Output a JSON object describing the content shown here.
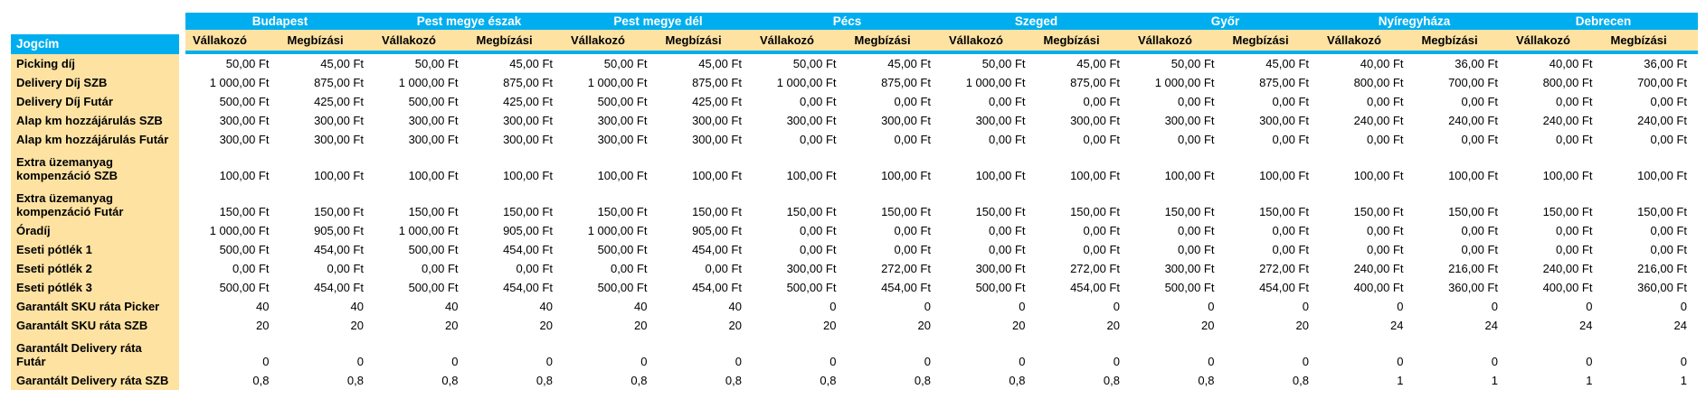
{
  "colors": {
    "header_cyan": "#00AEEF",
    "cell_tan": "#FDE2A2",
    "header_text": "#FFFFFF",
    "body_text": "#000000",
    "data_background": "#FFFFFF"
  },
  "table": {
    "corner_label": "Jogcím",
    "regions": [
      "Budapest",
      "Pest megye észak",
      "Pest megye dél",
      "Pécs",
      "Szeged",
      "Győr",
      "Nyíregyháza",
      "Debrecen"
    ],
    "sub_headers": [
      "Vállakozó",
      "Megbízási"
    ],
    "rows": [
      {
        "label": "Picking díj",
        "two_line": false,
        "values": [
          "50,00 Ft",
          "45,00 Ft",
          "50,00 Ft",
          "45,00 Ft",
          "50,00 Ft",
          "45,00 Ft",
          "50,00 Ft",
          "45,00 Ft",
          "50,00 Ft",
          "45,00 Ft",
          "50,00 Ft",
          "45,00 Ft",
          "40,00 Ft",
          "36,00 Ft",
          "40,00 Ft",
          "36,00 Ft"
        ]
      },
      {
        "label": "Delivery Díj SZB",
        "two_line": false,
        "values": [
          "1 000,00 Ft",
          "875,00 Ft",
          "1 000,00 Ft",
          "875,00 Ft",
          "1 000,00 Ft",
          "875,00 Ft",
          "1 000,00 Ft",
          "875,00 Ft",
          "1 000,00 Ft",
          "875,00 Ft",
          "1 000,00 Ft",
          "875,00 Ft",
          "800,00 Ft",
          "700,00 Ft",
          "800,00 Ft",
          "700,00 Ft"
        ]
      },
      {
        "label": "Delivery Díj Futár",
        "two_line": false,
        "values": [
          "500,00 Ft",
          "425,00 Ft",
          "500,00 Ft",
          "425,00 Ft",
          "500,00 Ft",
          "425,00 Ft",
          "0,00 Ft",
          "0,00 Ft",
          "0,00 Ft",
          "0,00 Ft",
          "0,00 Ft",
          "0,00 Ft",
          "0,00 Ft",
          "0,00 Ft",
          "0,00 Ft",
          "0,00 Ft"
        ]
      },
      {
        "label": "Alap km hozzájárulás SZB",
        "two_line": false,
        "values": [
          "300,00 Ft",
          "300,00 Ft",
          "300,00 Ft",
          "300,00 Ft",
          "300,00 Ft",
          "300,00 Ft",
          "300,00 Ft",
          "300,00 Ft",
          "300,00 Ft",
          "300,00 Ft",
          "300,00 Ft",
          "300,00 Ft",
          "240,00 Ft",
          "240,00 Ft",
          "240,00 Ft",
          "240,00 Ft"
        ]
      },
      {
        "label": "Alap km hozzájárulás Futár",
        "two_line": false,
        "values": [
          "300,00 Ft",
          "300,00 Ft",
          "300,00 Ft",
          "300,00 Ft",
          "300,00 Ft",
          "300,00 Ft",
          "0,00 Ft",
          "0,00 Ft",
          "0,00 Ft",
          "0,00 Ft",
          "0,00 Ft",
          "0,00 Ft",
          "0,00 Ft",
          "0,00 Ft",
          "0,00 Ft",
          "0,00 Ft"
        ]
      },
      {
        "label": "Extra üzemanyag\nkompenzáció SZB",
        "two_line": true,
        "values": [
          "100,00 Ft",
          "100,00 Ft",
          "100,00 Ft",
          "100,00 Ft",
          "100,00 Ft",
          "100,00 Ft",
          "100,00 Ft",
          "100,00 Ft",
          "100,00 Ft",
          "100,00 Ft",
          "100,00 Ft",
          "100,00 Ft",
          "100,00 Ft",
          "100,00 Ft",
          "100,00 Ft",
          "100,00 Ft"
        ]
      },
      {
        "label": "Extra üzemanyag\nkompenzáció Futár",
        "two_line": true,
        "values": [
          "150,00 Ft",
          "150,00 Ft",
          "150,00 Ft",
          "150,00 Ft",
          "150,00 Ft",
          "150,00 Ft",
          "150,00 Ft",
          "150,00 Ft",
          "150,00 Ft",
          "150,00 Ft",
          "150,00 Ft",
          "150,00 Ft",
          "150,00 Ft",
          "150,00 Ft",
          "150,00 Ft",
          "150,00 Ft"
        ]
      },
      {
        "label": "Óradíj",
        "two_line": false,
        "values": [
          "1 000,00 Ft",
          "905,00 Ft",
          "1 000,00 Ft",
          "905,00 Ft",
          "1 000,00 Ft",
          "905,00 Ft",
          "0,00 Ft",
          "0,00 Ft",
          "0,00 Ft",
          "0,00 Ft",
          "0,00 Ft",
          "0,00 Ft",
          "0,00 Ft",
          "0,00 Ft",
          "0,00 Ft",
          "0,00 Ft"
        ]
      },
      {
        "label": "Eseti pótlék 1",
        "two_line": false,
        "values": [
          "500,00 Ft",
          "454,00 Ft",
          "500,00 Ft",
          "454,00 Ft",
          "500,00 Ft",
          "454,00 Ft",
          "0,00 Ft",
          "0,00 Ft",
          "0,00 Ft",
          "0,00 Ft",
          "0,00 Ft",
          "0,00 Ft",
          "0,00 Ft",
          "0,00 Ft",
          "0,00 Ft",
          "0,00 Ft"
        ]
      },
      {
        "label": "Eseti pótlék 2",
        "two_line": false,
        "values": [
          "0,00 Ft",
          "0,00 Ft",
          "0,00 Ft",
          "0,00 Ft",
          "0,00 Ft",
          "0,00 Ft",
          "300,00 Ft",
          "272,00 Ft",
          "300,00 Ft",
          "272,00 Ft",
          "300,00 Ft",
          "272,00 Ft",
          "240,00 Ft",
          "216,00 Ft",
          "240,00 Ft",
          "216,00 Ft"
        ]
      },
      {
        "label": "Eseti pótlék 3",
        "two_line": false,
        "values": [
          "500,00 Ft",
          "454,00 Ft",
          "500,00 Ft",
          "454,00 Ft",
          "500,00 Ft",
          "454,00 Ft",
          "500,00 Ft",
          "454,00 Ft",
          "500,00 Ft",
          "454,00 Ft",
          "500,00 Ft",
          "454,00 Ft",
          "400,00 Ft",
          "360,00 Ft",
          "400,00 Ft",
          "360,00 Ft"
        ]
      },
      {
        "label": "Garantált SKU ráta Picker",
        "two_line": false,
        "values": [
          "40",
          "40",
          "40",
          "40",
          "40",
          "40",
          "0",
          "0",
          "0",
          "0",
          "0",
          "0",
          "0",
          "0",
          "0",
          "0"
        ]
      },
      {
        "label": "Garantált SKU ráta SZB",
        "two_line": false,
        "values": [
          "20",
          "20",
          "20",
          "20",
          "20",
          "20",
          "20",
          "20",
          "20",
          "20",
          "20",
          "20",
          "24",
          "24",
          "24",
          "24"
        ]
      },
      {
        "label": "Garantált Delivery ráta\nFutár",
        "two_line": true,
        "values": [
          "0",
          "0",
          "0",
          "0",
          "0",
          "0",
          "0",
          "0",
          "0",
          "0",
          "0",
          "0",
          "0",
          "0",
          "0",
          "0"
        ]
      },
      {
        "label": "Garantált Delivery ráta SZB",
        "two_line": false,
        "values": [
          "0,8",
          "0,8",
          "0,8",
          "0,8",
          "0,8",
          "0,8",
          "0,8",
          "0,8",
          "0,8",
          "0,8",
          "0,8",
          "0,8",
          "1",
          "1",
          "1",
          "1"
        ]
      }
    ]
  }
}
